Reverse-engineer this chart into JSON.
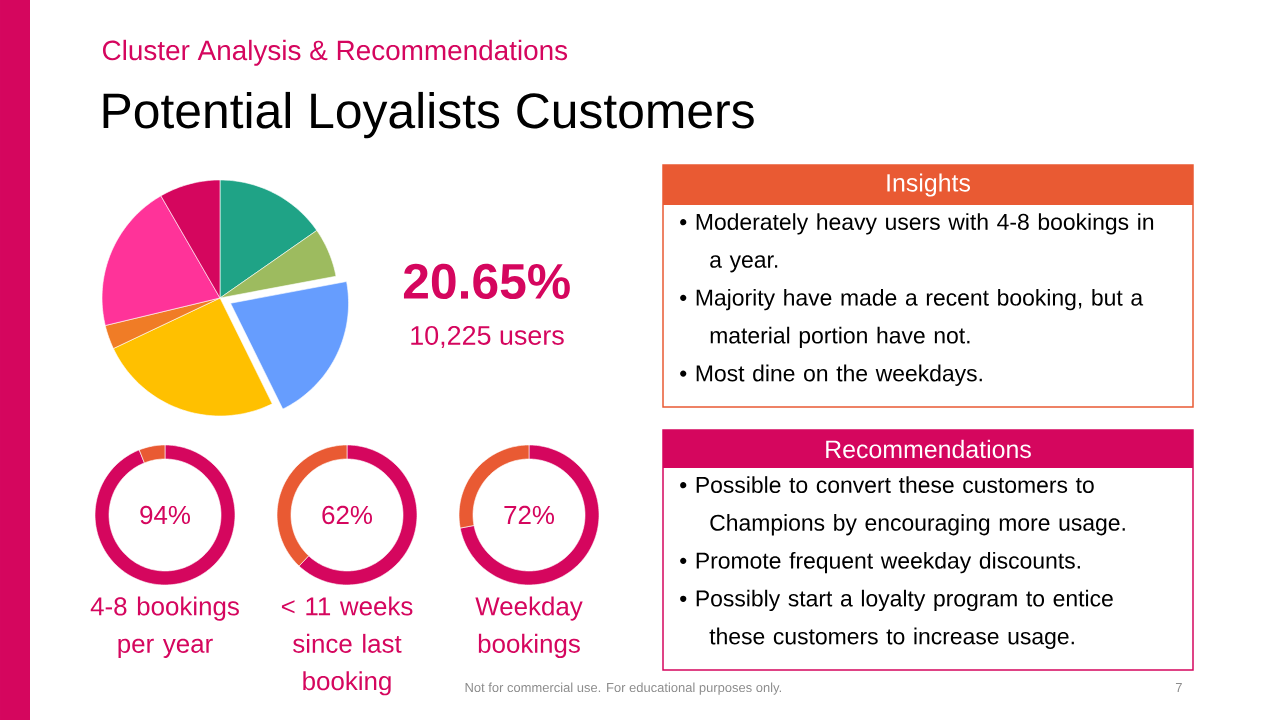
{
  "chart_data": [
    {
      "type": "pie",
      "title": "Potential Loyalists Customers",
      "subtitle": "Cluster Analysis & Recommendations",
      "categories": [
        null,
        null,
        null,
        null,
        null,
        null,
        null
      ],
      "values": [
        15.3,
        6.75,
        20.65,
        25.25,
        3.3,
        20.4,
        8.35
      ],
      "colors": [
        "#1fa386",
        "#9dbb5f",
        "#669dfe",
        "#ffc000",
        "#f07c26",
        "#ff3399",
        "#d5065e"
      ],
      "value_labels": [
        null,
        null,
        "20.65%",
        null,
        null,
        null,
        null
      ],
      "annotations": [
        "10,225 users",
        "Not for commercial use. For educational purposes only.",
        "7"
      ]
    },
    {
      "type": "donut",
      "title": "4-8 bookings per year",
      "categories": [
        null,
        null
      ],
      "values": [
        94,
        6
      ],
      "colors": [
        "#d5065e",
        "#e95a33"
      ],
      "value_labels": [
        "94%",
        null
      ]
    },
    {
      "type": "donut",
      "title": "< 11 weeks since last booking",
      "categories": [
        null,
        null
      ],
      "values": [
        62,
        38
      ],
      "colors": [
        "#d5065e",
        "#e95a33"
      ],
      "value_labels": [
        "62%",
        null
      ]
    },
    {
      "type": "donut",
      "title": "Weekday bookings",
      "categories": [
        null,
        null
      ],
      "values": [
        72,
        28
      ],
      "colors": [
        "#d5065e",
        "#e95a33"
      ],
      "value_labels": [
        "72%",
        null
      ]
    },
    {
      "type": "other",
      "title": "Insights",
      "color": "#e95a33",
      "annotations": [
        "• Moderately heavy users with 4-8 bookings in a year.",
        "• Majority have made a recent booking, but a material portion have not.",
        "• Most dine on the weekdays."
      ]
    },
    {
      "type": "other",
      "title": "Recommendations",
      "color": "#d5065e",
      "annotations": [
        "• Possible to convert these customers to Champions by encouraging more usage.",
        "• Promote frequent weekday discounts.",
        "• Possibly start a loyalty program to entice these customers to increase usage."
      ]
    }
  ]
}
